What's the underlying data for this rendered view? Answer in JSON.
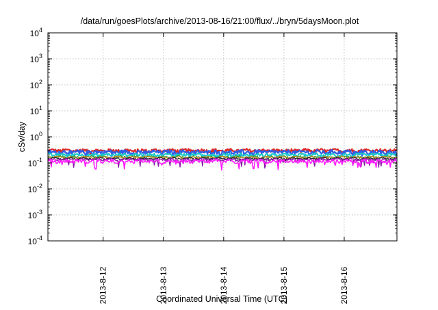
{
  "chart_data": {
    "type": "line",
    "title": "/data/run/goesPlots/archive/2013-08-16/21:00/flux/../bryn/5daysMoon.plot",
    "xlabel": "Coordinated Universal Time (UTC)",
    "ylabel": "cSv/day",
    "x_range": [
      "2013-08-11T02:00",
      "2013-08-16T21:00"
    ],
    "x_ticks": [
      "2013-8-12",
      "2013-8-13",
      "2013-8-14",
      "2013-8-15",
      "2013-8-16"
    ],
    "x_tick_dates": [
      "2013-08-12",
      "2013-08-13",
      "2013-08-14",
      "2013-08-15",
      "2013-08-16"
    ],
    "yscale": "log",
    "ylim": [
      0.0001,
      10000
    ],
    "y_ticks": [
      {
        "base": "10",
        "exp": "-4",
        "value": 0.0001
      },
      {
        "base": "10",
        "exp": "-3",
        "value": 0.001
      },
      {
        "base": "10",
        "exp": "-2",
        "value": 0.01
      },
      {
        "base": "10",
        "exp": "-1",
        "value": 0.1
      },
      {
        "base": "10",
        "exp": "0",
        "value": 1
      },
      {
        "base": "10",
        "exp": "1",
        "value": 10
      },
      {
        "base": "10",
        "exp": "2",
        "value": 100
      },
      {
        "base": "10",
        "exp": "3",
        "value": 1000
      },
      {
        "base": "10",
        "exp": "4",
        "value": 10000
      }
    ],
    "grid": true,
    "series": [
      {
        "color": "#dd2a2a",
        "base": 0.3,
        "amp": 0.13,
        "width": 2.2
      },
      {
        "color": "#2f5de6",
        "base": 0.26,
        "amp": 0.17,
        "width": 2.2
      },
      {
        "color": "#18c8c8",
        "base": 0.205,
        "amp": 0.11,
        "width": 2.0
      },
      {
        "color": "#2f9a3a",
        "base": 0.17,
        "amp": 0.08,
        "width": 1.3
      },
      {
        "color": "#c48a2a",
        "base": 0.165,
        "amp": 0.07,
        "width": 1.3
      },
      {
        "color": "#2a2a2a",
        "base": 0.148,
        "amp": 0.07,
        "width": 1.3
      },
      {
        "color": "#8a1aa8",
        "base": 0.135,
        "amp": 0.09,
        "width": 1.4
      },
      {
        "color": "#ff1aff",
        "base": 0.118,
        "amp": 0.16,
        "width": 1.6
      }
    ]
  }
}
